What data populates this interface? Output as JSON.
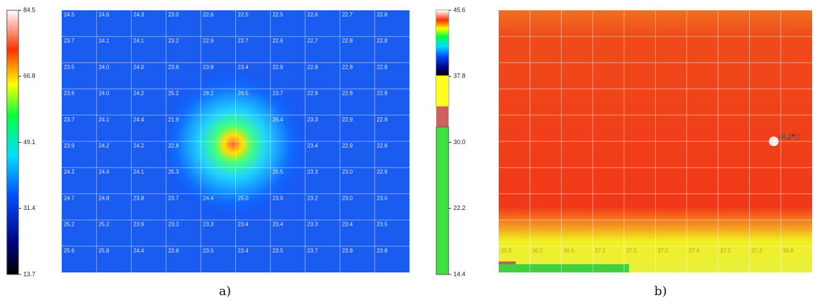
{
  "panel_a": {
    "scale_labels": [
      "84.5",
      "66.8",
      "49.1",
      "31.4",
      "13.7"
    ],
    "grid": [
      [
        "24.5",
        "24.6",
        "24.3",
        "23.0",
        "22.6",
        "22.5",
        "22.5",
        "22.6",
        "22.7",
        "22.8"
      ],
      [
        "23.7",
        "24.1",
        "24.1",
        "23.2",
        "22.9",
        "22.7",
        "22.6",
        "22.7",
        "22.8",
        "22.8"
      ],
      [
        "23.5",
        "24.0",
        "24.0",
        "23.8",
        "23.8",
        "23.4",
        "22.9",
        "22.8",
        "22.8",
        "22.8"
      ],
      [
        "23.6",
        "24.0",
        "24.2",
        "25.2",
        "28.2",
        "26.5",
        "23.7",
        "22.9",
        "22.8",
        "22.8"
      ],
      [
        "23.7",
        "24.1",
        "24.4",
        "21.9",
        null,
        null,
        "26.4",
        "23.3",
        "22.9",
        "22.8"
      ],
      [
        "23.9",
        "24.2",
        "24.2",
        "22.8",
        null,
        null,
        null,
        "23.4",
        "22.9",
        "22.8"
      ],
      [
        "24.2",
        "24.4",
        "24.1",
        "25.3",
        null,
        null,
        "25.5",
        "23.3",
        "23.0",
        "22.9"
      ],
      [
        "24.7",
        "24.8",
        "23.8",
        "23.7",
        "24.4",
        "25.0",
        "23.9",
        "23.2",
        "23.0",
        "23.0"
      ],
      [
        "25.2",
        "25.2",
        "23.9",
        "23.3",
        "23.3",
        "23.4",
        "23.4",
        "23.3",
        "23.4",
        "23.5"
      ],
      [
        "25.6",
        "25.8",
        "24.4",
        "23.8",
        "23.5",
        "23.4",
        "23.5",
        "23.7",
        "23.8",
        "23.8"
      ]
    ],
    "caption": "a)"
  },
  "panel_b": {
    "scale_labels": [
      "45.6",
      "37.8",
      "30.0",
      "22.2",
      "14.4"
    ],
    "bottom_row": [
      "35.9",
      "36.2",
      "36.6",
      "37.2",
      "37.5",
      "37.5",
      "37.6",
      "37.5",
      "37.2",
      "36.8"
    ],
    "hotspot": "44.9°C",
    "caption": "b)"
  }
}
